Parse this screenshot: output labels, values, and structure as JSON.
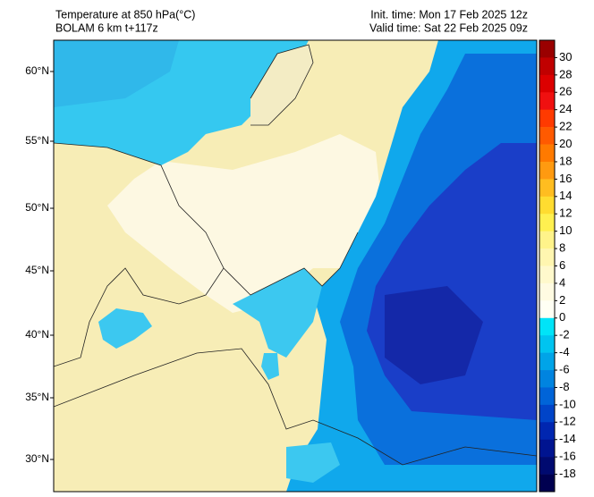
{
  "header": {
    "title": "Temperature at 850 hPa(°C)",
    "model": "BOLAM 6 km t+117z",
    "init_time": "Init. time: Mon 17 Feb 2025 12z",
    "valid_time": "Valid time: Sat 22 Feb 2025 09z"
  },
  "map": {
    "latitude_labels": [
      "60°N",
      "55°N",
      "50°N",
      "45°N",
      "40°N",
      "35°N",
      "30°N"
    ]
  },
  "colorbar": {
    "levels": [
      30,
      28,
      26,
      24,
      22,
      20,
      18,
      16,
      14,
      12,
      10,
      8,
      6,
      4,
      2,
      0,
      -2,
      -4,
      -6,
      -8,
      -10,
      -12,
      -14,
      -16,
      -18
    ],
    "colors": [
      "#9a0000",
      "#c00000",
      "#dc0000",
      "#f01010",
      "#ff3a00",
      "#ff5a00",
      "#ff7a00",
      "#ff9a10",
      "#ffbd20",
      "#ffdc30",
      "#fff050",
      "#fff38a",
      "#fff6b0",
      "#fff9cc",
      "#fffbe2",
      "#fffff4",
      "#00e4f8",
      "#00c4f0",
      "#00a4e8",
      "#0084e0",
      "#0064d8",
      "#0044c8",
      "#0026b0",
      "#001490",
      "#000a70",
      "#000050"
    ]
  }
}
